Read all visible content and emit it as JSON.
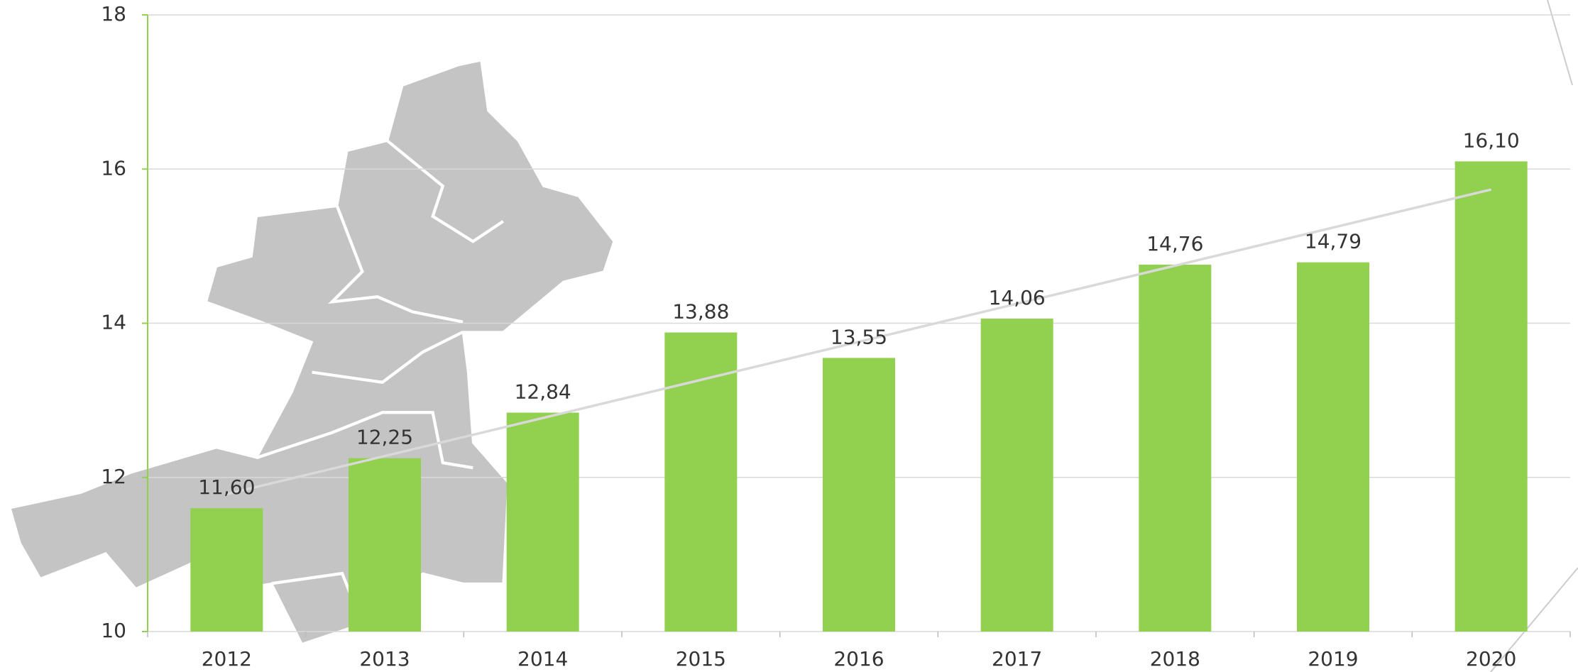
{
  "chart_data": {
    "type": "bar",
    "categories": [
      "2012",
      "2013",
      "2014",
      "2015",
      "2016",
      "2017",
      "2018",
      "2019",
      "2020"
    ],
    "values": [
      11.6,
      12.25,
      12.84,
      13.88,
      13.55,
      14.06,
      14.76,
      14.79,
      16.1
    ],
    "value_labels": [
      "11,60",
      "12,25",
      "12,84",
      "13,88",
      "13,55",
      "14,06",
      "14,76",
      "14,79",
      "16,10"
    ],
    "color": "#92d050",
    "ylim": [
      10,
      18
    ],
    "yticks": [
      10,
      12,
      14,
      16,
      18
    ],
    "grid": true,
    "trendline": true
  }
}
